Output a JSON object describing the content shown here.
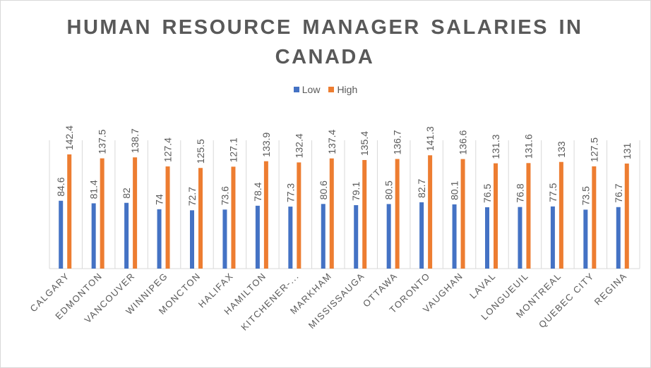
{
  "chart_data": {
    "type": "bar",
    "title": "HUMAN RESOURCE MANAGER SALARIES IN CANADA",
    "xlabel": "",
    "ylabel": "",
    "ylim": [
      0,
      160
    ],
    "grid": "vertical category separators",
    "legend_position": "top",
    "categories": [
      "CALGARY",
      "EDMONTON",
      "VANCOUVER",
      "WINNIPEG",
      "MONCTON",
      "HALIFAX",
      "HAMILTON",
      "KITCHENER-...",
      "MARKHAM",
      "MISSISSAUGA",
      "OTTAWA",
      "TORONTO",
      "VAUGHAN",
      "LAVAL",
      "LONGUEUIL",
      "MONTREAL",
      "QUEBEC CITY",
      "REGINA"
    ],
    "series": [
      {
        "name": "Low",
        "color": "#4472c4",
        "values": [
          84.6,
          81.4,
          82,
          74,
          72.7,
          73.6,
          78.4,
          77.3,
          80.6,
          79.1,
          80.5,
          82.7,
          80.1,
          76.5,
          76.8,
          77.5,
          73.5,
          76.7
        ]
      },
      {
        "name": "High",
        "color": "#ed7d31",
        "values": [
          142.4,
          137.5,
          138.7,
          127.4,
          125.5,
          127.1,
          133.9,
          132.4,
          137.4,
          135.4,
          136.7,
          141.3,
          136.6,
          131.3,
          131.6,
          133,
          127.5,
          131
        ]
      }
    ]
  }
}
